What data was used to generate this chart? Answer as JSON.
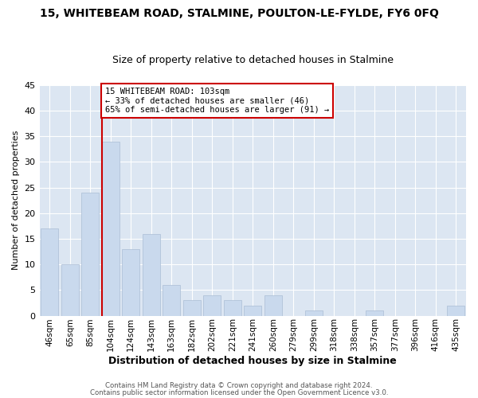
{
  "title": "15, WHITEBEAM ROAD, STALMINE, POULTON-LE-FYLDE, FY6 0FQ",
  "subtitle": "Size of property relative to detached houses in Stalmine",
  "xlabel": "Distribution of detached houses by size in Stalmine",
  "ylabel": "Number of detached properties",
  "bar_color": "#c9d9ed",
  "bar_edge_color": "#aabdd4",
  "grid_color": "#ffffff",
  "bg_color": "#dce6f2",
  "fig_color": "#ffffff",
  "categories": [
    "46sqm",
    "65sqm",
    "85sqm",
    "104sqm",
    "124sqm",
    "143sqm",
    "163sqm",
    "182sqm",
    "202sqm",
    "221sqm",
    "241sqm",
    "260sqm",
    "279sqm",
    "299sqm",
    "318sqm",
    "338sqm",
    "357sqm",
    "377sqm",
    "396sqm",
    "416sqm",
    "435sqm"
  ],
  "values": [
    17,
    10,
    24,
    34,
    13,
    16,
    6,
    3,
    4,
    3,
    2,
    4,
    0,
    1,
    0,
    0,
    1,
    0,
    0,
    0,
    2
  ],
  "ylim": [
    0,
    45
  ],
  "yticks": [
    0,
    5,
    10,
    15,
    20,
    25,
    30,
    35,
    40,
    45
  ],
  "vline_color": "#cc0000",
  "annotation_title": "15 WHITEBEAM ROAD: 103sqm",
  "annotation_line1": "← 33% of detached houses are smaller (46)",
  "annotation_line2": "65% of semi-detached houses are larger (91) →",
  "annotation_box_color": "#ffffff",
  "annotation_box_edge_color": "#cc0000",
  "footer1": "Contains HM Land Registry data © Crown copyright and database right 2024.",
  "footer2": "Contains public sector information licensed under the Open Government Licence v3.0."
}
